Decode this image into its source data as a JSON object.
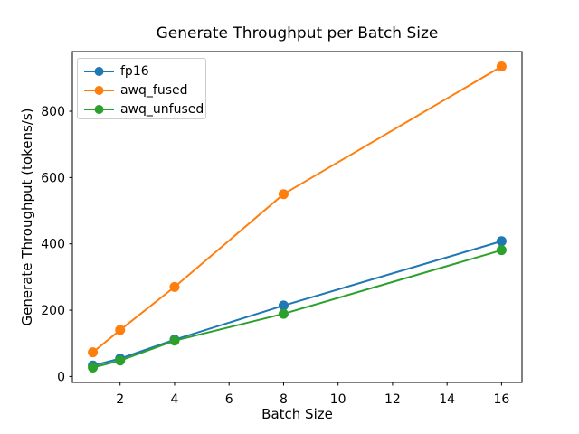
{
  "chart_data": {
    "type": "line",
    "title": "Generate Throughput per Batch Size",
    "xlabel": "Batch Size",
    "ylabel": "Generate Throughput (tokens/s)",
    "x": [
      1,
      2,
      4,
      8,
      16
    ],
    "series": [
      {
        "name": "fp16",
        "color": "#1f77b4",
        "values": [
          33,
          54,
          111,
          214,
          408
        ]
      },
      {
        "name": "awq_fused",
        "color": "#ff7f0e",
        "values": [
          73,
          140,
          270,
          550,
          935
        ]
      },
      {
        "name": "awq_unfused",
        "color": "#2ca02c",
        "values": [
          27,
          48,
          108,
          189,
          381
        ]
      }
    ],
    "xticks": [
      2,
      4,
      6,
      8,
      10,
      12,
      14,
      16
    ],
    "yticks": [
      0,
      200,
      400,
      600,
      800
    ],
    "xlim": [
      0.25,
      16.75
    ],
    "ylim": [
      -18,
      980
    ],
    "grid": false,
    "legend_position": "upper left",
    "marker": "o",
    "axis_color": "#000000",
    "background_color": "#ffffff"
  }
}
